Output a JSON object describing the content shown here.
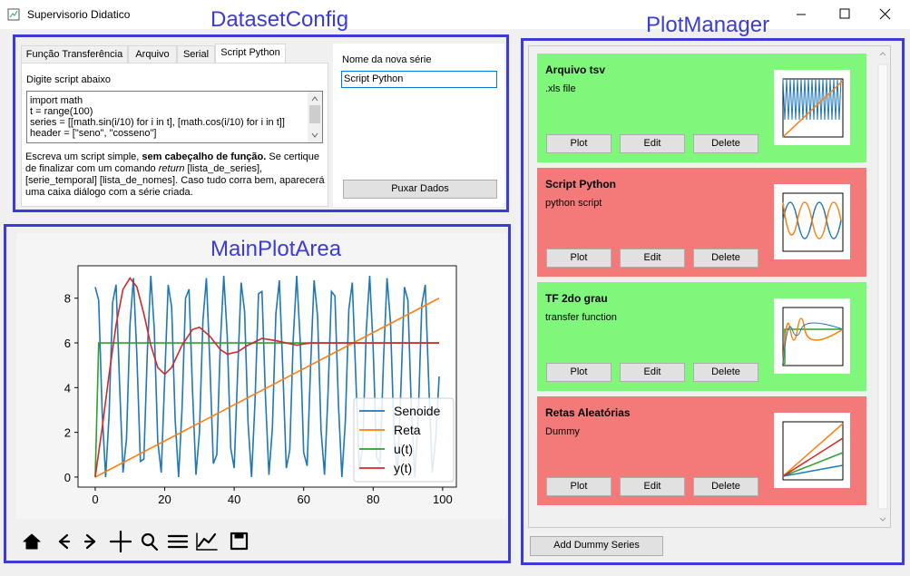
{
  "window": {
    "title": "Supervisorio Didatico"
  },
  "annotations": {
    "dataset_config": "DatasetConfig",
    "plot_manager": "PlotManager",
    "main_plot_area": "MainPlotArea"
  },
  "dataset_config": {
    "tabs": [
      "Função Transferência",
      "Arquivo",
      "Serial",
      "Script Python"
    ],
    "active_tab": 3,
    "script_label": "Digite script abaixo",
    "script_lines": [
      "import math",
      "t = range(100)",
      "series = [[math.sin(i/10) for i in t], [math.cos(i/10) for i in t]]",
      "header = [\"seno\", \"cosseno\"]"
    ],
    "help": [
      {
        "text": "Escreva um script simple, ",
        "style": "normal"
      },
      {
        "text": "sem cabeçalho de função.",
        "style": "bold"
      },
      {
        "text": " Se certique de finalizar com um comando ",
        "style": "normal"
      },
      {
        "text": "return",
        "style": "italic"
      },
      {
        "text": " [lista_de_series], [serie_temporal] [lista_de_nomes]. Caso tudo corra bem, aparecerá uma caixa diálogo com a série criada.",
        "style": "normal"
      }
    ],
    "name_label": "Nome da nova série",
    "name_value": "Script Python",
    "pull_button": "Puxar Dados"
  },
  "plot_manager": {
    "cards": [
      {
        "title": "Arquivo tsv",
        "subtitle": ".xls file",
        "color": "#7ef77a",
        "buttons": [
          "Plot",
          "Edit",
          "Delete"
        ]
      },
      {
        "title": "Script Python",
        "subtitle": "python script",
        "color": "#f47a7a",
        "buttons": [
          "Plot",
          "Edit",
          "Delete"
        ]
      },
      {
        "title": "TF 2do grau",
        "subtitle": "transfer function",
        "color": "#7ef77a",
        "buttons": [
          "Plot",
          "Edit",
          "Delete"
        ]
      },
      {
        "title": "Retas Aleatórias",
        "subtitle": "Dummy",
        "color": "#f47a7a",
        "buttons": [
          "Plot",
          "Edit",
          "Delete"
        ]
      }
    ],
    "add_button": "Add Dummy Series"
  },
  "chart_data": {
    "type": "line",
    "xlim": [
      -4.95,
      103.95
    ],
    "ylim": [
      -0.45,
      9.45
    ],
    "xticks": [
      0,
      20,
      40,
      60,
      80,
      100
    ],
    "yticks": [
      0,
      2,
      4,
      6,
      8
    ],
    "legend": "lower right",
    "series": [
      {
        "name": "Senoide",
        "color": "#1f77b4",
        "x": [
          0,
          1,
          2,
          3,
          4,
          5,
          6,
          7,
          8,
          9,
          10,
          11,
          12,
          13,
          14,
          15,
          16,
          17,
          18,
          19,
          20,
          21,
          22,
          23,
          24,
          25,
          26,
          27,
          28,
          29,
          30,
          31,
          32,
          33,
          34,
          35,
          36,
          37,
          38,
          39,
          40,
          41,
          42,
          43,
          44,
          45,
          46,
          47,
          48,
          49,
          50,
          51,
          52,
          53,
          54,
          55,
          56,
          57,
          58,
          59,
          60,
          61,
          62,
          63,
          64,
          65,
          66,
          67,
          68,
          69,
          70,
          71,
          72,
          73,
          74,
          75,
          76,
          77,
          78,
          79,
          80,
          81,
          82,
          83,
          84,
          85,
          86,
          87,
          88,
          89,
          90,
          91,
          92,
          93,
          94,
          95,
          96,
          97,
          98,
          99
        ],
        "values": [
          8.5,
          7.9,
          2.9,
          0.0,
          2.8,
          7.8,
          8.6,
          4.2,
          0.2,
          1.7,
          6.8,
          8.9,
          5.4,
          0.7,
          0.8,
          5.6,
          9.0,
          6.6,
          1.6,
          0.2,
          4.4,
          8.6,
          7.6,
          2.6,
          0.0,
          3.1,
          8.0,
          8.4,
          3.9,
          0.1,
          2.0,
          7.0,
          8.9,
          5.1,
          0.6,
          1.0,
          5.9,
          9.0,
          6.3,
          1.3,
          0.4,
          4.7,
          8.7,
          7.4,
          2.4,
          0.0,
          3.4,
          8.2,
          8.3,
          3.6,
          0.1,
          2.2,
          7.3,
          8.8,
          4.8,
          0.4,
          1.2,
          6.2,
          9.0,
          6.1,
          1.1,
          0.5,
          5.0,
          8.8,
          7.2,
          2.1,
          0.1,
          3.7,
          8.3,
          8.1,
          3.3,
          0.0,
          2.5,
          7.5,
          8.7,
          4.5,
          0.3,
          1.4,
          6.5,
          9.0,
          5.8,
          0.9,
          0.6,
          5.3,
          8.9,
          6.9,
          1.9,
          0.1,
          4.0,
          8.5,
          7.9,
          3.0,
          0.0,
          2.8,
          7.7,
          8.6,
          4.2,
          0.2,
          1.7,
          4.5
        ]
      },
      {
        "name": "Reta",
        "color": "#ff7f0e",
        "x": [
          0,
          99
        ],
        "values": [
          0,
          8
        ]
      },
      {
        "name": "u(t)",
        "color": "#2ca02c",
        "x": [
          0,
          1,
          99
        ],
        "values": [
          0,
          6,
          6
        ]
      },
      {
        "name": "y(t)",
        "color": "#d62728",
        "x": [
          0,
          2,
          4,
          6,
          8,
          10,
          12,
          14,
          16,
          18,
          20,
          22,
          25,
          28,
          30,
          33,
          36,
          38,
          41,
          44,
          48,
          52,
          55,
          58,
          62,
          70,
          80,
          99
        ],
        "values": [
          0,
          2.2,
          4.6,
          6.8,
          8.4,
          8.9,
          8.5,
          7.3,
          5.9,
          4.9,
          4.6,
          4.9,
          5.9,
          6.6,
          6.7,
          6.3,
          5.7,
          5.5,
          5.6,
          5.9,
          6.2,
          6.1,
          6.0,
          5.9,
          6.0,
          6.0,
          6.0,
          6.0
        ]
      }
    ]
  }
}
